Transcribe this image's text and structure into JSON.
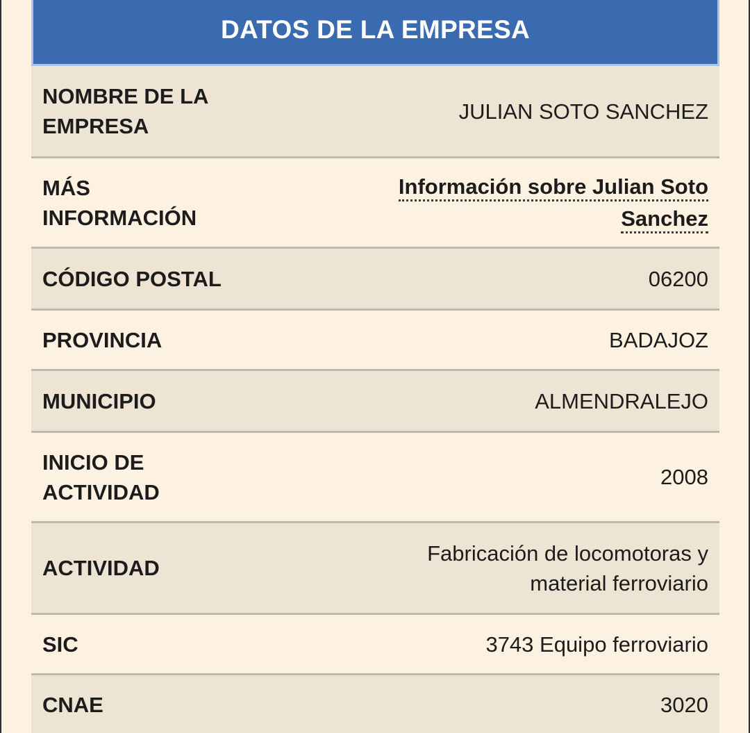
{
  "header": {
    "title": "DATOS DE LA EMPRESA"
  },
  "rows": [
    {
      "label": "NOMBRE DE LA EMPRESA",
      "value": "JULIAN SOTO SANCHEZ"
    },
    {
      "label": "MÁS INFORMACIÓN",
      "link": "Información sobre Julian Soto Sanchez"
    },
    {
      "label": "CÓDIGO POSTAL",
      "value": "06200"
    },
    {
      "label": "PROVINCIA",
      "value": "BADAJOZ"
    },
    {
      "label": "MUNICIPIO",
      "value": "ALMENDRALEJO"
    },
    {
      "label": "INICIO DE ACTIVIDAD",
      "value": "2008"
    },
    {
      "label": "ACTIVIDAD",
      "value": "Fabricación de locomotoras y material ferroviario"
    },
    {
      "label": "SIC",
      "value": "3743 Equipo ferroviario"
    },
    {
      "label": "CNAE",
      "value": "3020"
    }
  ],
  "colors": {
    "header_bg": "#3a6bb0",
    "header_border": "#a8c6ec",
    "row_odd": "#eee4d4",
    "row_even": "#fdf1e2",
    "divider": "#bdb8b0"
  }
}
